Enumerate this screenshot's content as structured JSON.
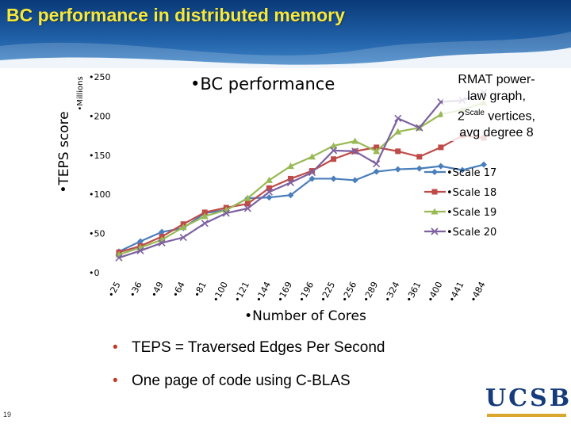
{
  "slide": {
    "title": "BC performance in distributed memory",
    "page_number": "19",
    "accent_color": "#f7e83a",
    "header_color": "#1f5fa6"
  },
  "bullets": [
    {
      "text": "TEPS = Traversed Edges Per Second"
    },
    {
      "text": "One page of code using C-BLAS"
    }
  ],
  "logo": {
    "text": "UCSB"
  },
  "annotation": {
    "line1": "RMAT power-",
    "line2": "law graph,",
    "line3_pre": "2",
    "line3_sup": "Scale",
    "line3_post": " vertices,",
    "line4": "avg degree 8"
  },
  "chart_data": {
    "type": "line",
    "title": "•BC performance",
    "xlabel": "•Number of Cores",
    "ylabel": "•TEPS score",
    "yunit_label": "•Millions",
    "categories": [
      "25",
      "36",
      "49",
      "64",
      "81",
      "100",
      "121",
      "144",
      "169",
      "196",
      "225",
      "256",
      "289",
      "324",
      "361",
      "400",
      "441",
      "484"
    ],
    "category_labels": [
      "•25",
      "•36",
      "•49",
      "•64",
      "•81",
      "•100",
      "•121",
      "•144",
      "•169",
      "•196",
      "•225",
      "•256",
      "•289",
      "•324",
      "•361",
      "•400",
      "•441",
      "•484"
    ],
    "yticks": [
      0,
      50,
      100,
      150,
      200,
      250
    ],
    "ytick_labels": [
      "•0",
      "•50",
      "•100",
      "•150",
      "•200",
      "•250"
    ],
    "ylim": [
      0,
      250
    ],
    "grid": false,
    "legend_position": "right",
    "series": [
      {
        "name": "Scale 17",
        "label": "•Scale 17",
        "color": "#4a7ebb",
        "marker": "diamond",
        "values": [
          27,
          40,
          52,
          57,
          76,
          80,
          95,
          96,
          99,
          120,
          120,
          118,
          129,
          132,
          133,
          136,
          131,
          138
        ]
      },
      {
        "name": "Scale 18",
        "label": "•Scale 18",
        "color": "#be4b48",
        "marker": "square",
        "values": [
          26,
          34,
          46,
          62,
          77,
          83,
          88,
          108,
          120,
          130,
          145,
          155,
          160,
          155,
          148,
          160,
          175,
          172
        ]
      },
      {
        "name": "Scale 19",
        "label": "•Scale 19",
        "color": "#98b954",
        "marker": "triangle",
        "values": [
          23,
          32,
          42,
          58,
          72,
          80,
          95,
          118,
          136,
          148,
          162,
          168,
          155,
          180,
          185,
          202,
          208,
          217
        ]
      },
      {
        "name": "Scale 20",
        "label": "•Scale 20",
        "color": "#7d60a0",
        "marker": "x",
        "values": [
          19,
          28,
          38,
          45,
          63,
          76,
          82,
          103,
          115,
          128,
          156,
          155,
          139,
          197,
          185,
          218,
          220,
          230
        ]
      }
    ]
  }
}
